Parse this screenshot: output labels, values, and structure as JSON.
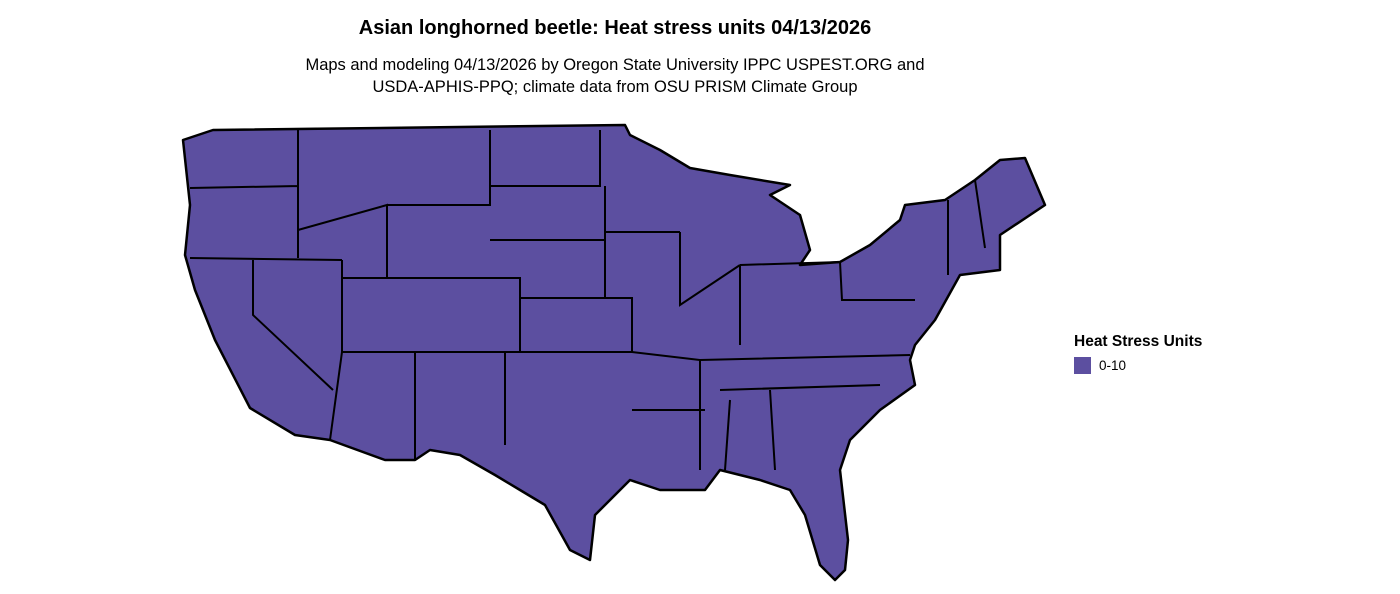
{
  "title": "Asian longhorned beetle: Heat stress units 04/13/2026",
  "subtitle_line1": "Maps and modeling 04/13/2026 by Oregon State University IPPC USPEST.ORG and",
  "subtitle_line2": "USDA-APHIS-PPQ; climate data from OSU PRISM Climate Group",
  "map": {
    "region": "Contiguous United States",
    "fill_color": "#5c4fa0",
    "border_color": "#000000"
  },
  "legend": {
    "title": "Heat Stress Units",
    "items": [
      {
        "label": "0-10",
        "color": "#5c4fa0"
      }
    ]
  }
}
